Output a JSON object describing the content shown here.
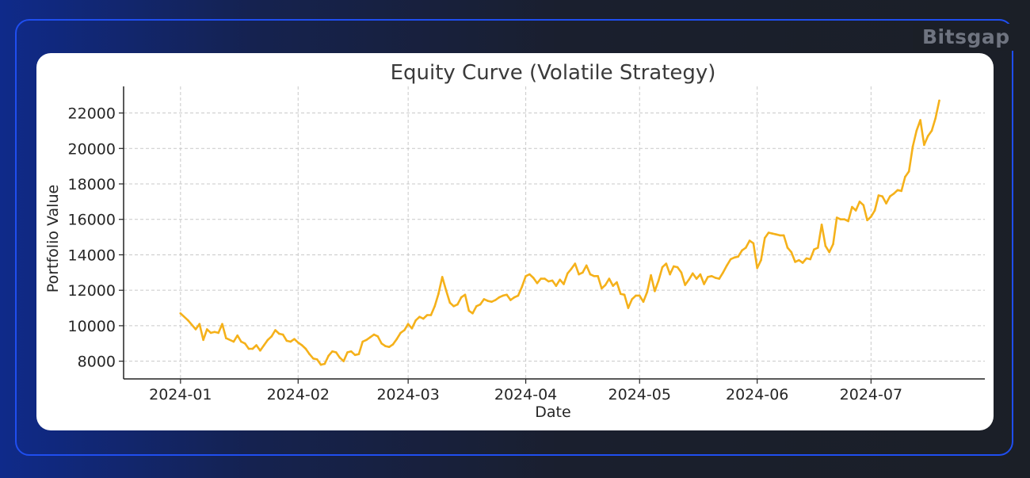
{
  "brand": {
    "logo_text": "Bitsgap"
  },
  "chart_data": {
    "type": "line",
    "title": "Equity Curve (Volatile Strategy)",
    "xlabel": "Date",
    "ylabel": "Portfolio Value",
    "xlim": [
      "2023-12-17",
      "2024-07-31"
    ],
    "ylim": [
      7000,
      23500
    ],
    "grid": true,
    "line_color": "#f5b11a",
    "x_tick_labels": [
      {
        "date": "2024-01-01",
        "label": "2024-01"
      },
      {
        "date": "2024-02-01",
        "label": "2024-02"
      },
      {
        "date": "2024-03-01",
        "label": "2024-03"
      },
      {
        "date": "2024-04-01",
        "label": "2024-04"
      },
      {
        "date": "2024-05-01",
        "label": "2024-05"
      },
      {
        "date": "2024-06-01",
        "label": "2024-06"
      },
      {
        "date": "2024-07-01",
        "label": "2024-07"
      }
    ],
    "y_ticks": [
      8000,
      10000,
      12000,
      14000,
      16000,
      18000,
      20000,
      22000
    ],
    "series": [
      {
        "points": [
          [
            "2024-01-01",
            10700
          ],
          [
            "2024-01-03",
            10300
          ],
          [
            "2024-01-05",
            9800
          ],
          [
            "2024-01-06",
            10100
          ],
          [
            "2024-01-07",
            9200
          ],
          [
            "2024-01-08",
            9800
          ],
          [
            "2024-01-09",
            9600
          ],
          [
            "2024-01-10",
            9650
          ],
          [
            "2024-01-11",
            9600
          ],
          [
            "2024-01-12",
            10100
          ],
          [
            "2024-01-13",
            9300
          ],
          [
            "2024-01-15",
            9100
          ],
          [
            "2024-01-16",
            9450
          ],
          [
            "2024-01-17",
            9100
          ],
          [
            "2024-01-18",
            9000
          ],
          [
            "2024-01-19",
            8700
          ],
          [
            "2024-01-20",
            8700
          ],
          [
            "2024-01-21",
            8900
          ],
          [
            "2024-01-22",
            8600
          ],
          [
            "2024-01-23",
            8900
          ],
          [
            "2024-01-24",
            9200
          ],
          [
            "2024-01-25",
            9400
          ],
          [
            "2024-01-26",
            9750
          ],
          [
            "2024-01-27",
            9550
          ],
          [
            "2024-01-28",
            9500
          ],
          [
            "2024-01-29",
            9150
          ],
          [
            "2024-01-30",
            9100
          ],
          [
            "2024-01-31",
            9250
          ],
          [
            "2024-02-01",
            9050
          ],
          [
            "2024-02-02",
            8900
          ],
          [
            "2024-02-03",
            8700
          ],
          [
            "2024-02-04",
            8400
          ],
          [
            "2024-02-05",
            8150
          ],
          [
            "2024-02-06",
            8100
          ],
          [
            "2024-02-07",
            7800
          ],
          [
            "2024-02-08",
            7850
          ],
          [
            "2024-02-09",
            8300
          ],
          [
            "2024-02-10",
            8550
          ],
          [
            "2024-02-11",
            8500
          ],
          [
            "2024-02-12",
            8200
          ],
          [
            "2024-02-13",
            8000
          ],
          [
            "2024-02-14",
            8500
          ],
          [
            "2024-02-15",
            8550
          ],
          [
            "2024-02-16",
            8350
          ],
          [
            "2024-02-17",
            8400
          ],
          [
            "2024-02-18",
            9100
          ],
          [
            "2024-02-19",
            9200
          ],
          [
            "2024-02-20",
            9350
          ],
          [
            "2024-02-21",
            9500
          ],
          [
            "2024-02-22",
            9400
          ],
          [
            "2024-02-23",
            9000
          ],
          [
            "2024-02-24",
            8850
          ],
          [
            "2024-02-25",
            8800
          ],
          [
            "2024-02-26",
            8950
          ],
          [
            "2024-02-27",
            9250
          ],
          [
            "2024-02-28",
            9600
          ],
          [
            "2024-02-29",
            9750
          ],
          [
            "2024-03-01",
            10100
          ],
          [
            "2024-03-02",
            9850
          ],
          [
            "2024-03-03",
            10300
          ],
          [
            "2024-03-04",
            10500
          ],
          [
            "2024-03-05",
            10400
          ],
          [
            "2024-03-06",
            10600
          ],
          [
            "2024-03-07",
            10600
          ],
          [
            "2024-03-08",
            11100
          ],
          [
            "2024-03-09",
            11800
          ],
          [
            "2024-03-10",
            12750
          ],
          [
            "2024-03-11",
            12000
          ],
          [
            "2024-03-12",
            11300
          ],
          [
            "2024-03-13",
            11100
          ],
          [
            "2024-03-14",
            11200
          ],
          [
            "2024-03-15",
            11600
          ],
          [
            "2024-03-16",
            11750
          ],
          [
            "2024-03-17",
            10850
          ],
          [
            "2024-03-18",
            10700
          ],
          [
            "2024-03-19",
            11100
          ],
          [
            "2024-03-20",
            11200
          ],
          [
            "2024-03-21",
            11500
          ],
          [
            "2024-03-22",
            11400
          ],
          [
            "2024-03-23",
            11350
          ],
          [
            "2024-03-24",
            11450
          ],
          [
            "2024-03-25",
            11600
          ],
          [
            "2024-03-26",
            11700
          ],
          [
            "2024-03-27",
            11750
          ],
          [
            "2024-03-28",
            11450
          ],
          [
            "2024-03-29",
            11600
          ],
          [
            "2024-03-30",
            11700
          ],
          [
            "2024-03-31",
            12200
          ],
          [
            "2024-04-01",
            12800
          ],
          [
            "2024-04-02",
            12900
          ],
          [
            "2024-04-03",
            12700
          ],
          [
            "2024-04-04",
            12400
          ],
          [
            "2024-04-05",
            12650
          ],
          [
            "2024-04-06",
            12650
          ],
          [
            "2024-04-07",
            12500
          ],
          [
            "2024-04-08",
            12550
          ],
          [
            "2024-04-09",
            12250
          ],
          [
            "2024-04-10",
            12600
          ],
          [
            "2024-04-11",
            12350
          ],
          [
            "2024-04-12",
            12950
          ],
          [
            "2024-04-13",
            13200
          ],
          [
            "2024-04-14",
            13500
          ],
          [
            "2024-04-15",
            12900
          ],
          [
            "2024-04-16",
            13000
          ],
          [
            "2024-04-17",
            13400
          ],
          [
            "2024-04-18",
            12900
          ],
          [
            "2024-04-19",
            12800
          ],
          [
            "2024-04-20",
            12800
          ],
          [
            "2024-04-21",
            12100
          ],
          [
            "2024-04-22",
            12300
          ],
          [
            "2024-04-23",
            12650
          ],
          [
            "2024-04-24",
            12250
          ],
          [
            "2024-04-25",
            12450
          ],
          [
            "2024-04-26",
            11800
          ],
          [
            "2024-04-27",
            11750
          ],
          [
            "2024-04-28",
            11000
          ],
          [
            "2024-04-29",
            11500
          ],
          [
            "2024-04-30",
            11700
          ],
          [
            "2024-05-01",
            11700
          ],
          [
            "2024-05-02",
            11350
          ],
          [
            "2024-05-03",
            11900
          ],
          [
            "2024-05-04",
            12850
          ],
          [
            "2024-05-05",
            11950
          ],
          [
            "2024-05-06",
            12550
          ],
          [
            "2024-05-07",
            13300
          ],
          [
            "2024-05-08",
            13500
          ],
          [
            "2024-05-09",
            12900
          ],
          [
            "2024-05-10",
            13350
          ],
          [
            "2024-05-11",
            13300
          ],
          [
            "2024-05-12",
            13000
          ],
          [
            "2024-05-13",
            12300
          ],
          [
            "2024-05-14",
            12600
          ],
          [
            "2024-05-15",
            12950
          ],
          [
            "2024-05-16",
            12650
          ],
          [
            "2024-05-17",
            12900
          ],
          [
            "2024-05-18",
            12350
          ],
          [
            "2024-05-19",
            12750
          ],
          [
            "2024-05-20",
            12800
          ],
          [
            "2024-05-21",
            12700
          ],
          [
            "2024-05-22",
            12650
          ],
          [
            "2024-05-23",
            13000
          ],
          [
            "2024-05-24",
            13400
          ],
          [
            "2024-05-25",
            13750
          ],
          [
            "2024-05-26",
            13850
          ],
          [
            "2024-05-27",
            13900
          ],
          [
            "2024-05-28",
            14250
          ],
          [
            "2024-05-29",
            14400
          ],
          [
            "2024-05-30",
            14800
          ],
          [
            "2024-05-31",
            14650
          ],
          [
            "2024-06-01",
            13250
          ],
          [
            "2024-06-02",
            13700
          ],
          [
            "2024-06-03",
            14950
          ],
          [
            "2024-06-04",
            15250
          ],
          [
            "2024-06-05",
            15200
          ],
          [
            "2024-06-06",
            15150
          ],
          [
            "2024-06-07",
            15100
          ],
          [
            "2024-06-08",
            15100
          ],
          [
            "2024-06-09",
            14400
          ],
          [
            "2024-06-10",
            14150
          ],
          [
            "2024-06-11",
            13600
          ],
          [
            "2024-06-12",
            13700
          ],
          [
            "2024-06-13",
            13550
          ],
          [
            "2024-06-14",
            13800
          ],
          [
            "2024-06-15",
            13750
          ],
          [
            "2024-06-16",
            14300
          ],
          [
            "2024-06-17",
            14400
          ],
          [
            "2024-06-18",
            15700
          ],
          [
            "2024-06-19",
            14500
          ],
          [
            "2024-06-20",
            14150
          ],
          [
            "2024-06-21",
            14600
          ],
          [
            "2024-06-22",
            16100
          ],
          [
            "2024-06-23",
            16000
          ],
          [
            "2024-06-24",
            16000
          ],
          [
            "2024-06-25",
            15900
          ],
          [
            "2024-06-26",
            16700
          ],
          [
            "2024-06-27",
            16500
          ],
          [
            "2024-06-28",
            17000
          ],
          [
            "2024-06-29",
            16800
          ],
          [
            "2024-06-30",
            15950
          ],
          [
            "2024-07-01",
            16150
          ],
          [
            "2024-07-02",
            16500
          ],
          [
            "2024-07-03",
            17350
          ],
          [
            "2024-07-04",
            17300
          ],
          [
            "2024-07-05",
            16900
          ],
          [
            "2024-07-06",
            17300
          ],
          [
            "2024-07-07",
            17450
          ],
          [
            "2024-07-08",
            17650
          ],
          [
            "2024-07-09",
            17600
          ],
          [
            "2024-07-10",
            18400
          ],
          [
            "2024-07-11",
            18700
          ],
          [
            "2024-07-12",
            20100
          ],
          [
            "2024-07-13",
            21000
          ],
          [
            "2024-07-14",
            21600
          ],
          [
            "2024-07-15",
            20200
          ],
          [
            "2024-07-16",
            20700
          ],
          [
            "2024-07-17",
            21000
          ],
          [
            "2024-07-18",
            21700
          ],
          [
            "2024-07-19",
            22700
          ]
        ]
      }
    ]
  }
}
